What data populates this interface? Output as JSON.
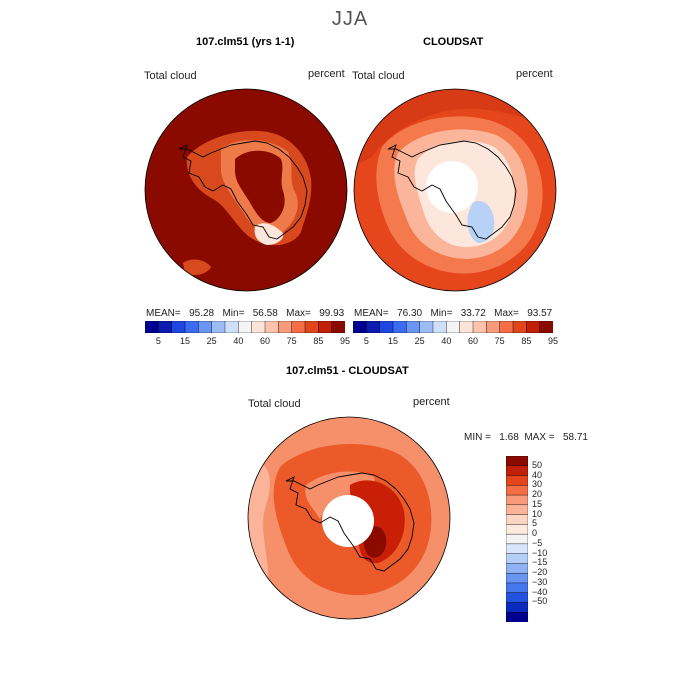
{
  "season": "JJA",
  "panels": [
    {
      "title": "107.clm51 (yrs 1-1)",
      "variable": "Total cloud",
      "units": "percent",
      "stats": {
        "mean_label": "MEAN=",
        "mean": "95.28",
        "min_label": "Min=",
        "min": "56.58",
        "max_label": "Max=",
        "max": "99.93"
      },
      "background": "#8b0a00",
      "fields": [
        {
          "name": "coast-ring",
          "color": "#d84a1e"
        },
        {
          "name": "inner-ring",
          "color": "#ee7a4a"
        },
        {
          "name": "low-values",
          "color": "#fde7dc"
        }
      ]
    },
    {
      "title": "CLOUDSAT",
      "variable": "Total cloud",
      "units": "percent",
      "stats": {
        "mean_label": "MEAN=",
        "mean": "76.30",
        "min_label": "Min=",
        "min": "33.72",
        "max_label": "Max=",
        "max": "93.57"
      },
      "background": "#e6461c",
      "fields": [
        {
          "name": "outer-band",
          "color": "#d73a15"
        },
        {
          "name": "mid-band",
          "color": "#f47a4e"
        },
        {
          "name": "inner-band",
          "color": "#fbb59a"
        },
        {
          "name": "pale-band",
          "color": "#fde6db"
        },
        {
          "name": "blue-patch",
          "color": "#b8d1f7"
        }
      ]
    },
    {
      "title": "107.clm51 - CLOUDSAT",
      "variable": "Total cloud",
      "units": "percent",
      "stats": {
        "min_label": "MIN =",
        "min": "1.68",
        "max_label": "MAX =",
        "max": "58.71"
      },
      "background": "#f6906b",
      "fields": [
        {
          "name": "outer-light",
          "color": "#fbb49a"
        },
        {
          "name": "ring",
          "color": "#ec5a2a"
        },
        {
          "name": "hot-spot",
          "color": "#c91f06"
        },
        {
          "name": "max-spot",
          "color": "#8b0a00"
        }
      ]
    }
  ],
  "abs_colorbar": {
    "colors": [
      "#000090",
      "#0a1bb0",
      "#1e46e0",
      "#3b6bf0",
      "#6a95f3",
      "#9dbcf6",
      "#cfe0fa",
      "#f4f4f4",
      "#fde4d8",
      "#fcc3ac",
      "#f99a7a",
      "#f36d45",
      "#e2441c",
      "#c21f08",
      "#8b0a00"
    ],
    "ticks": [
      "5",
      "15",
      "25",
      "40",
      "60",
      "75",
      "85",
      "95"
    ]
  },
  "diff_colorbar": {
    "colors": [
      "#8b0a00",
      "#c21f08",
      "#e2441c",
      "#f36d45",
      "#f99a7a",
      "#fbb49a",
      "#fcd5c2",
      "#fde9de",
      "#f4f4f4",
      "#d7e6fb",
      "#b5cef7",
      "#8fb2f4",
      "#6a95f3",
      "#4577ee",
      "#2352e0",
      "#0a2bc0",
      "#000090"
    ],
    "ticks": [
      "50",
      "40",
      "30",
      "20",
      "15",
      "10",
      "5",
      "0",
      "−5",
      "−10",
      "−15",
      "−20",
      "−30",
      "−40",
      "−50"
    ]
  }
}
